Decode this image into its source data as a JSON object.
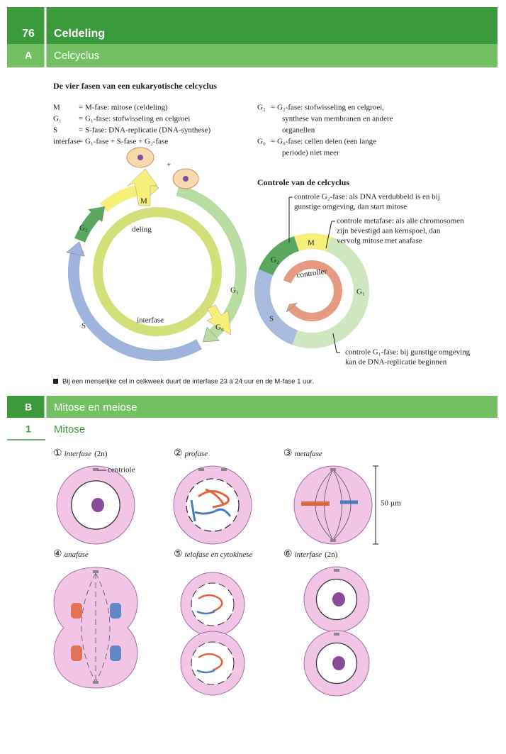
{
  "header": {
    "number": "76",
    "title": "Celdeling"
  },
  "section_a": {
    "letter": "A",
    "title": "Celcyclus"
  },
  "cycle": {
    "heading": "De vier fasen van een eukaryotische celcyclus",
    "left_terms": [
      {
        "term": "M",
        "definition": "= M-fase: mitose (celdeling)"
      },
      {
        "term": "G₁",
        "definition": "= G₁-fase: stofwisseling en celgroei"
      },
      {
        "term": "S",
        "definition": "= S-fase: DNA-replicatie (DNA-synthese)"
      },
      {
        "term": "interfase",
        "definition": "= G₁-fase + S-fase + G₂-fase"
      }
    ],
    "right_terms": [
      {
        "term": "G₂",
        "lines": [
          "= G₂-fase: stofwisseling en celgroei,",
          "synthese van membranen en andere",
          "organellen"
        ]
      },
      {
        "term": "G₀",
        "lines": [
          "= G₀-fase: cellen delen (een lange",
          "periode) niet meer"
        ]
      }
    ],
    "diagram": {
      "plus": "+",
      "m": "M",
      "g2": "G₂",
      "g1": "G₁",
      "s": "S",
      "g0": "G₀",
      "deling": "deling",
      "interfase": "interfase"
    }
  },
  "control": {
    "heading": "Controle van de celcyclus",
    "labels": {
      "m": "M",
      "g2": "G₂",
      "g1": "G₁",
      "s": "S",
      "controller": "controller"
    },
    "notes": [
      [
        "controle G₂-fase: als DNA verdubbeld is en bij",
        "gunstige omgeving, dan start mitose"
      ],
      [
        "controle metafase: als alle chromosomen",
        "zijn bevestigd aan kernspoel, dan",
        "vervolg mitose met anafase"
      ],
      [
        "controle G₁-fase: bij gunstige omgeving",
        "kan de DNA-replicatie beginnen"
      ]
    ]
  },
  "footnote": "Bij een menselijke cel in celkweek duurt de interfase 23 à 24 uur en de M-fase 1 uur.",
  "section_b": {
    "letter": "B",
    "title": "Mitose en meiose"
  },
  "subsection": {
    "number": "1",
    "title": "Mitose"
  },
  "mitosis": {
    "stages": [
      {
        "number": "①",
        "name": "interfase",
        "extra": "(2n)"
      },
      {
        "number": "②",
        "name": "profase"
      },
      {
        "number": "③",
        "name": "metafase"
      },
      {
        "number": "④",
        "name": "anafase"
      },
      {
        "number": "⑤",
        "name": "telofase en cytokinese"
      },
      {
        "number": "⑥",
        "name": "interfase",
        "extra": "(2n)"
      }
    ],
    "centriole": "centriole",
    "scale": "50 µm"
  }
}
